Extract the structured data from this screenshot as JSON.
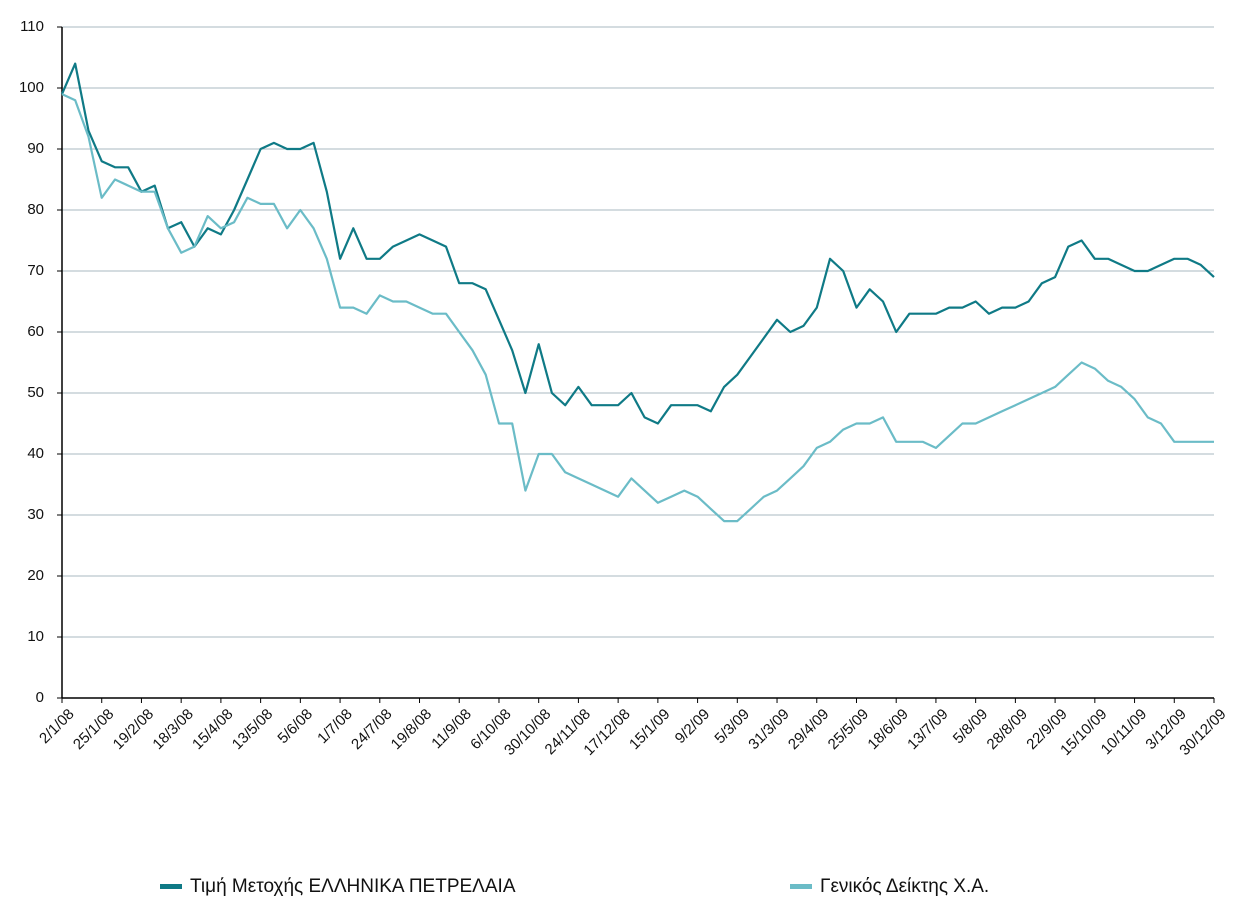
{
  "chart_data": {
    "type": "line",
    "categories": [
      "2/1/08",
      null,
      null,
      "25/1/08",
      null,
      null,
      "19/2/08",
      null,
      null,
      "18/3/08",
      null,
      null,
      "15/4/08",
      null,
      null,
      "13/5/08",
      null,
      null,
      "5/6/08",
      null,
      null,
      "1/7/08",
      null,
      null,
      "24/7/08",
      null,
      null,
      "19/8/08",
      null,
      null,
      "11/9/08",
      null,
      null,
      "6/10/08",
      null,
      null,
      "30/10/08",
      null,
      null,
      "24/11/08",
      null,
      null,
      "17/12/08",
      null,
      null,
      "15/1/09",
      null,
      null,
      "9/2/09",
      null,
      null,
      "5/3/09",
      null,
      null,
      "31/3/09",
      null,
      null,
      "29/4/09",
      null,
      null,
      "25/5/09",
      null,
      null,
      "18/6/09",
      null,
      null,
      "13/7/09",
      null,
      null,
      "5/8/09",
      null,
      null,
      "28/8/09",
      null,
      null,
      "22/9/09",
      null,
      null,
      "15/10/09",
      null,
      null,
      "10/11/09",
      null,
      null,
      "3/12/09",
      null,
      null,
      "30/12/09"
    ],
    "series": [
      {
        "name": "Τιμή Μετοχής ΕΛΛΗΝΙΚΑ ΠΕΤΡΕΛΑΙΑ",
        "color": "#0f7a86",
        "values": [
          99,
          104,
          93,
          88,
          87,
          87,
          83,
          84,
          77,
          78,
          74,
          77,
          76,
          80,
          85,
          90,
          91,
          90,
          90,
          91,
          83,
          72,
          77,
          72,
          72,
          74,
          75,
          76,
          75,
          74,
          68,
          68,
          67,
          62,
          57,
          50,
          58,
          50,
          48,
          51,
          48,
          48,
          48,
          50,
          46,
          45,
          48,
          48,
          48,
          47,
          51,
          53,
          56,
          59,
          62,
          60,
          61,
          64,
          72,
          70,
          64,
          67,
          65,
          60,
          63,
          63,
          63,
          64,
          64,
          65,
          63,
          64,
          64,
          65,
          68,
          69,
          74,
          75,
          72,
          72,
          71,
          70,
          70,
          71,
          72,
          72,
          71,
          69
        ]
      },
      {
        "name": "Γενικός Δείκτης Χ.Α.",
        "color": "#6bbcc7",
        "values": [
          99,
          98,
          92,
          82,
          85,
          84,
          83,
          83,
          77,
          73,
          74,
          79,
          77,
          78,
          82,
          81,
          81,
          77,
          80,
          77,
          72,
          64,
          64,
          63,
          66,
          65,
          65,
          64,
          63,
          63,
          60,
          57,
          53,
          45,
          45,
          34,
          40,
          40,
          37,
          36,
          35,
          34,
          33,
          36,
          34,
          32,
          33,
          34,
          33,
          31,
          29,
          29,
          31,
          33,
          34,
          36,
          38,
          41,
          42,
          44,
          45,
          45,
          46,
          42,
          42,
          42,
          41,
          43,
          45,
          45,
          46,
          47,
          48,
          49,
          50,
          51,
          53,
          55,
          54,
          52,
          51,
          49,
          46,
          45,
          42,
          42,
          42,
          42
        ]
      }
    ],
    "ylim": [
      0,
      110
    ],
    "yticks": [
      0,
      10,
      20,
      30,
      40,
      50,
      60,
      70,
      80,
      90,
      100,
      110
    ],
    "grid": true,
    "legend": "bottom"
  }
}
